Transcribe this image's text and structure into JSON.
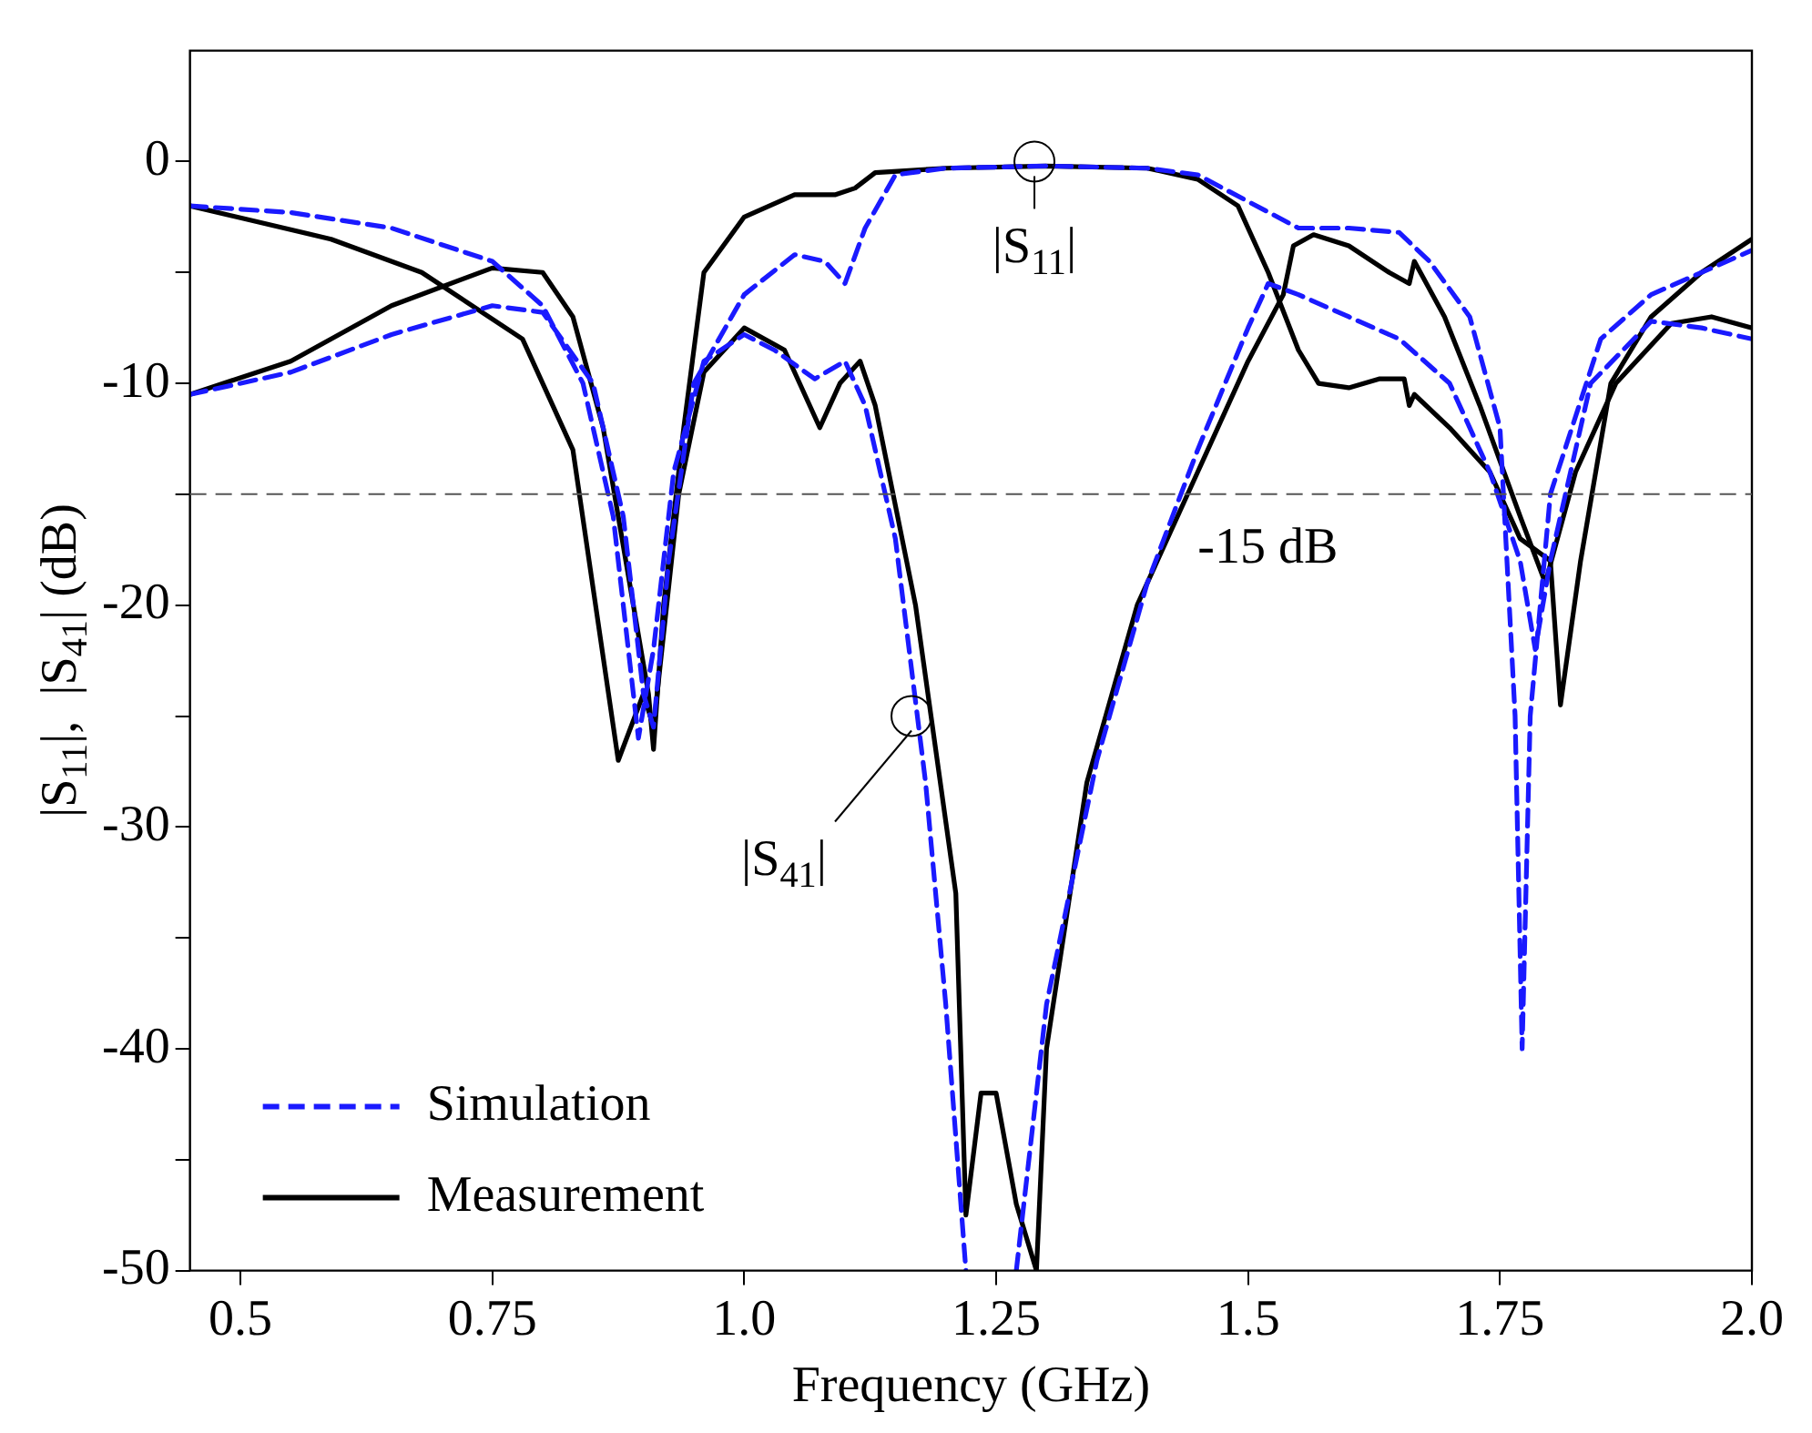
{
  "chart_data": {
    "type": "line",
    "xlabel": "Frequency (GHz)",
    "ylabel": "|S$_{11}$|,  |S$_{41}$| (dB)",
    "xlim": [
      0.45,
      2.0
    ],
    "xticks": [
      {
        "value": 0.5,
        "label": "0.5"
      },
      {
        "value": 0.75,
        "label": "0.75"
      },
      {
        "value": 1.0,
        "label": "1.0"
      },
      {
        "value": 1.25,
        "label": "1.25"
      },
      {
        "value": 1.5,
        "label": "1.5"
      },
      {
        "value": 1.75,
        "label": "1.75"
      },
      {
        "value": 2.0,
        "label": "2.0"
      }
    ],
    "ylim": [
      -50,
      5
    ],
    "yticks": [
      -50,
      {
        "value": -45,
        "label": null
      },
      -40,
      {
        "value": -35,
        "label": null
      },
      -30,
      {
        "value": -25,
        "label": null
      },
      -20,
      {
        "value": -15,
        "label": null
      },
      -10,
      {
        "value": -5,
        "label": null
      },
      0
    ],
    "grid": false,
    "legend": "bottom left",
    "marker": "none",
    "ref_lines": [
      {
        "axis": "y",
        "value": -15,
        "label": "-15 dB",
        "color": "#555555",
        "line_style": "dashed"
      }
    ],
    "annotations": [
      {
        "text": "|S$_{11}$|",
        "x": 1.288,
        "y": 0
      },
      {
        "text": "|S$_{41}$|",
        "x": 1.166,
        "y": -25
      }
    ],
    "series": [
      {
        "name": "Simulation",
        "color": "#1a1aff",
        "line_style": "dashed",
        "x": [
          0.45,
          0.55,
          0.65,
          0.75,
          0.8,
          0.84,
          0.87,
          0.895,
          0.91,
          0.93,
          0.96,
          1.0,
          1.03,
          1.07,
          1.1,
          1.12,
          1.15,
          1.18,
          1.2,
          1.22,
          1.245,
          1.27,
          1.3,
          1.35,
          1.4,
          1.45,
          1.5,
          1.52,
          1.55,
          1.6,
          1.65,
          1.7,
          1.74,
          1.77,
          1.785,
          1.8,
          1.84,
          1.9,
          1.95,
          2.0
        ],
        "values": [
          -2,
          -2.3,
          -3,
          -4.5,
          -6.5,
          -10,
          -16,
          -26,
          -22,
          -14,
          -9,
          -7.8,
          -8.5,
          -9.8,
          -9,
          -11,
          -17,
          -28,
          -38,
          -50,
          null,
          -50,
          -38,
          -27,
          -19,
          -13,
          -7.5,
          -5.5,
          -6,
          -7,
          -8,
          -10,
          -14,
          -18,
          -22,
          -18,
          -10,
          -7.2,
          -7.5,
          -8
        ]
      },
      {
        "color": "#1a1aff",
        "line_style": "dashed",
        "x": [
          0.45,
          0.55,
          0.65,
          0.75,
          0.8,
          0.85,
          0.88,
          0.9,
          0.91,
          0.925,
          0.95,
          1.0,
          1.05,
          1.08,
          1.1,
          1.12,
          1.15,
          1.2,
          1.3,
          1.4,
          1.45,
          1.5,
          1.55,
          1.6,
          1.65,
          1.68,
          1.72,
          1.75,
          1.765,
          1.772,
          1.78,
          1.8,
          1.85,
          1.9,
          2.0
        ],
        "values": [
          -10.5,
          -9.5,
          -7.8,
          -6.5,
          -6.8,
          -10,
          -16,
          -24,
          -25.5,
          -18,
          -10,
          -6,
          -4.2,
          -4.5,
          -5.5,
          -3,
          -0.6,
          -0.3,
          -0.2,
          -0.3,
          -0.6,
          -1.8,
          -3,
          -3,
          -3.2,
          -4.5,
          -7,
          -12,
          -25,
          -40,
          -25,
          -15,
          -8,
          -6,
          -4
        ]
      },
      {
        "name": "Measurement",
        "color": "#000000",
        "line_style": "solid",
        "x": [
          0.45,
          0.59,
          0.68,
          0.78,
          0.83,
          0.875,
          0.9,
          0.91,
          0.935,
          0.96,
          1.0,
          1.04,
          1.075,
          1.095,
          1.115,
          1.13,
          1.17,
          1.21,
          1.22,
          1.235,
          1.25,
          1.27,
          1.29,
          1.3,
          1.34,
          1.39,
          1.45,
          1.5,
          1.535,
          1.545,
          1.565,
          1.6,
          1.64,
          1.66,
          1.665,
          1.695,
          1.73,
          1.77,
          1.795,
          1.825,
          1.865,
          1.92,
          1.96,
          2.0
        ],
        "values": [
          -2,
          -3.5,
          -5,
          -8,
          -13,
          -27,
          -24,
          -25.5,
          -15,
          -9.5,
          -7.5,
          -8.5,
          -12,
          -10,
          -9,
          -11,
          -20,
          -33,
          -47.5,
          -42,
          -42,
          -47,
          -50,
          -40,
          -28,
          -20,
          -14,
          -9,
          -6,
          -3.8,
          -3.3,
          -3.8,
          -5,
          -5.5,
          -4.5,
          -7,
          -11,
          -16,
          -19,
          -14,
          -10,
          -7.3,
          -7,
          -7.5
        ]
      },
      {
        "color": "#000000",
        "line_style": "solid",
        "x": [
          0.45,
          0.55,
          0.65,
          0.75,
          0.8,
          0.83,
          0.86,
          0.89,
          0.905,
          0.91,
          0.92,
          0.94,
          0.96,
          1.0,
          1.05,
          1.09,
          1.11,
          1.13,
          1.2,
          1.3,
          1.4,
          1.45,
          1.49,
          1.52,
          1.55,
          1.57,
          1.6,
          1.63,
          1.655,
          1.66,
          1.665,
          1.7,
          1.74,
          1.77,
          1.8,
          1.81,
          1.83,
          1.86,
          1.9,
          1.95,
          2.0
        ],
        "values": [
          -10.5,
          -9,
          -6.5,
          -4.8,
          -5,
          -7,
          -12,
          -20,
          -24,
          -26.5,
          -20,
          -12,
          -5,
          -2.5,
          -1.5,
          -1.5,
          -1.2,
          -0.5,
          -0.3,
          -0.2,
          -0.3,
          -0.8,
          -2,
          -5,
          -8.5,
          -10,
          -10.2,
          -9.8,
          -9.8,
          -11,
          -10.5,
          -12,
          -14,
          -17,
          -18,
          -24.5,
          -18,
          -10,
          -7,
          -5,
          -3.5
        ]
      }
    ]
  }
}
